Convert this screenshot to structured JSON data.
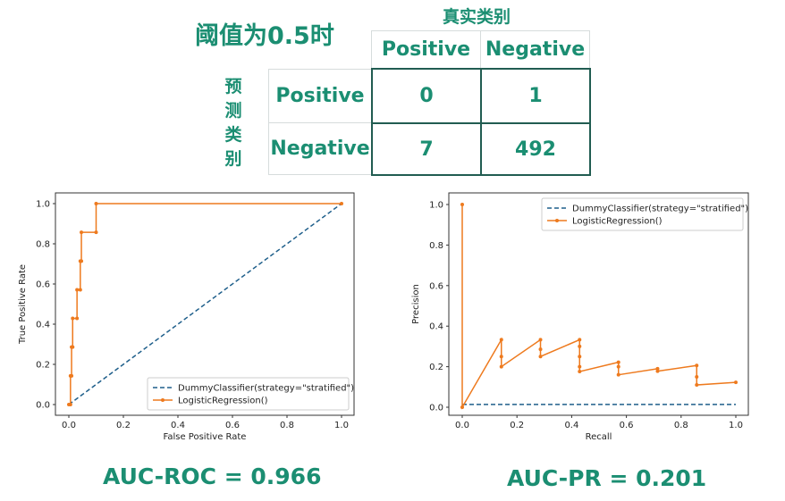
{
  "slide": {
    "title": "阈值为0.5时",
    "actual_label": "真实类别",
    "predicted_label": "预测类别",
    "text_color": "#1b8e72",
    "border_color": "#215c51"
  },
  "confusion_matrix": {
    "col_headers": [
      "Positive",
      "Negative"
    ],
    "rows": [
      {
        "header": "Positive",
        "values": [
          "0",
          "1"
        ]
      },
      {
        "header": "Negative",
        "values": [
          "7",
          "492"
        ]
      }
    ]
  },
  "auc": {
    "roc": "AUC-ROC = 0.966",
    "pr": "AUC-PR = 0.201"
  },
  "chart_data": [
    {
      "type": "line",
      "xlabel": "False Positive Rate",
      "ylabel": "True Positive Rate",
      "xlim": [
        0,
        1
      ],
      "ylim": [
        0,
        1
      ],
      "ticks": [
        "0.0",
        "0.2",
        "0.4",
        "0.6",
        "0.8",
        "1.0"
      ],
      "legend": "bottom-right",
      "series": [
        {
          "name": "DummyClassifier(strategy=\"stratified\")",
          "color": "#1f5f8b",
          "style": "dashed",
          "x": [
            0,
            1
          ],
          "y": [
            0,
            1
          ]
        },
        {
          "name": "LogisticRegression()",
          "color": "#ee7a1e",
          "style": "solid-marker",
          "x": [
            0,
            0.006,
            0.006,
            0.01,
            0.01,
            0.014,
            0.014,
            0.03,
            0.03,
            0.042,
            0.042,
            0.046,
            0.046,
            0.1,
            0.1,
            1
          ],
          "y": [
            0,
            0,
            0.143,
            0.143,
            0.286,
            0.286,
            0.429,
            0.429,
            0.571,
            0.571,
            0.714,
            0.714,
            0.857,
            0.857,
            1,
            1
          ]
        }
      ]
    },
    {
      "type": "line",
      "xlabel": "Recall",
      "ylabel": "Precision",
      "xlim": [
        0,
        1
      ],
      "ylim": [
        0,
        1
      ],
      "ticks": [
        "0.0",
        "0.2",
        "0.4",
        "0.6",
        "0.8",
        "1.0"
      ],
      "legend": "top-right",
      "series": [
        {
          "name": "DummyClassifier(strategy=\"stratified\")",
          "color": "#1f5f8b",
          "style": "dashed",
          "x": [
            0,
            1
          ],
          "y": [
            0.014,
            0.014
          ]
        },
        {
          "name": "LogisticRegression()",
          "color": "#ee7a1e",
          "style": "solid-marker",
          "x": [
            0,
            0,
            0.143,
            0.143,
            0.143,
            0.286,
            0.286,
            0.286,
            0.429,
            0.429,
            0.429,
            0.429,
            0.429,
            0.571,
            0.571,
            0.571,
            0.714,
            0.714,
            0.857,
            0.857,
            0.857,
            1
          ],
          "y": [
            1,
            0,
            0.333,
            0.25,
            0.2,
            0.333,
            0.286,
            0.25,
            0.333,
            0.3,
            0.25,
            0.2,
            0.176,
            0.222,
            0.2,
            0.16,
            0.19,
            0.178,
            0.206,
            0.15,
            0.11,
            0.123
          ]
        }
      ]
    }
  ]
}
